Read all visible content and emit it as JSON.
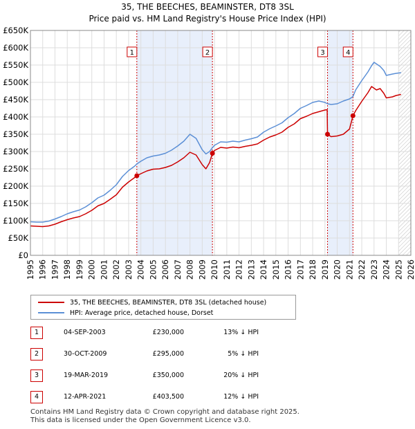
{
  "chart_data": {
    "type": "line",
    "title_line1": "35, THE BEECHES, BEAMINSTER, DT8 3SL",
    "title_line2": "Price paid vs. HM Land Registry's House Price Index (HPI)",
    "y_tick_labels": [
      "£0",
      "£50K",
      "£100K",
      "£150K",
      "£200K",
      "£250K",
      "£300K",
      "£350K",
      "£400K",
      "£450K",
      "£500K",
      "£550K",
      "£600K",
      "£650K"
    ],
    "y_ticks": [
      0,
      50000,
      100000,
      150000,
      200000,
      250000,
      300000,
      350000,
      400000,
      450000,
      500000,
      550000,
      600000,
      650000
    ],
    "x_ticks": [
      1995,
      1996,
      1997,
      1998,
      1999,
      2000,
      2001,
      2002,
      2003,
      2004,
      2005,
      2006,
      2007,
      2008,
      2009,
      2010,
      2011,
      2012,
      2013,
      2014,
      2015,
      2016,
      2017,
      2018,
      2019,
      2020,
      2021,
      2022,
      2023,
      2024,
      2025,
      2026
    ],
    "xlim": [
      1995,
      2026
    ],
    "ylim": [
      0,
      650000
    ],
    "grid": true,
    "hatched_after": 2025.0,
    "shaded_periods": [
      [
        2003.67,
        2009.83
      ],
      [
        2019.21,
        2021.28
      ]
    ],
    "series": [
      {
        "name": "35, THE BEECHES, BEAMINSTER, DT8 3SL (detached house)",
        "color": "#cc0000",
        "points": [
          [
            1995.0,
            85000
          ],
          [
            1995.5,
            84000
          ],
          [
            1996.0,
            83000
          ],
          [
            1996.5,
            85000
          ],
          [
            1997.0,
            90000
          ],
          [
            1997.5,
            97000
          ],
          [
            1998.0,
            103000
          ],
          [
            1998.5,
            108000
          ],
          [
            1999.0,
            112000
          ],
          [
            1999.5,
            120000
          ],
          [
            2000.0,
            130000
          ],
          [
            2000.5,
            143000
          ],
          [
            2001.0,
            150000
          ],
          [
            2001.5,
            162000
          ],
          [
            2002.0,
            175000
          ],
          [
            2002.5,
            197000
          ],
          [
            2003.0,
            212000
          ],
          [
            2003.5,
            225000
          ],
          [
            2003.67,
            230000
          ],
          [
            2004.0,
            236000
          ],
          [
            2004.5,
            244000
          ],
          [
            2005.0,
            249000
          ],
          [
            2005.5,
            250000
          ],
          [
            2006.0,
            254000
          ],
          [
            2006.5,
            260000
          ],
          [
            2007.0,
            270000
          ],
          [
            2007.5,
            282000
          ],
          [
            2008.0,
            298000
          ],
          [
            2008.5,
            290000
          ],
          [
            2009.0,
            262000
          ],
          [
            2009.3,
            250000
          ],
          [
            2009.6,
            268000
          ],
          [
            2009.83,
            295000
          ],
          [
            2010.0,
            303000
          ],
          [
            2010.5,
            312000
          ],
          [
            2011.0,
            310000
          ],
          [
            2011.5,
            313000
          ],
          [
            2012.0,
            311000
          ],
          [
            2012.5,
            315000
          ],
          [
            2013.0,
            318000
          ],
          [
            2013.5,
            322000
          ],
          [
            2014.0,
            333000
          ],
          [
            2014.5,
            342000
          ],
          [
            2015.0,
            348000
          ],
          [
            2015.5,
            356000
          ],
          [
            2016.0,
            370000
          ],
          [
            2016.5,
            380000
          ],
          [
            2017.0,
            395000
          ],
          [
            2017.5,
            402000
          ],
          [
            2018.0,
            410000
          ],
          [
            2018.5,
            415000
          ],
          [
            2019.0,
            420000
          ],
          [
            2019.18,
            421000
          ],
          [
            2019.21,
            350000
          ],
          [
            2019.5,
            343000
          ],
          [
            2020.0,
            345000
          ],
          [
            2020.5,
            350000
          ],
          [
            2021.0,
            365000
          ],
          [
            2021.28,
            403500
          ],
          [
            2021.5,
            418000
          ],
          [
            2022.0,
            445000
          ],
          [
            2022.5,
            470000
          ],
          [
            2022.8,
            488000
          ],
          [
            2023.2,
            478000
          ],
          [
            2023.5,
            482000
          ],
          [
            2023.8,
            468000
          ],
          [
            2024.0,
            455000
          ],
          [
            2024.5,
            458000
          ],
          [
            2024.8,
            462000
          ],
          [
            2025.2,
            465000
          ]
        ]
      },
      {
        "name": "HPI: Average price, detached house, Dorset",
        "color": "#5b8fd6",
        "points": [
          [
            1995.0,
            97000
          ],
          [
            1995.5,
            96000
          ],
          [
            1996.0,
            96000
          ],
          [
            1996.5,
            99000
          ],
          [
            1997.0,
            105000
          ],
          [
            1997.5,
            112000
          ],
          [
            1998.0,
            120000
          ],
          [
            1998.5,
            126000
          ],
          [
            1999.0,
            131000
          ],
          [
            1999.5,
            140000
          ],
          [
            2000.0,
            152000
          ],
          [
            2000.5,
            166000
          ],
          [
            2001.0,
            174000
          ],
          [
            2001.5,
            188000
          ],
          [
            2002.0,
            204000
          ],
          [
            2002.5,
            228000
          ],
          [
            2003.0,
            245000
          ],
          [
            2003.5,
            258000
          ],
          [
            2003.67,
            264000
          ],
          [
            2004.0,
            272000
          ],
          [
            2004.5,
            282000
          ],
          [
            2005.0,
            287000
          ],
          [
            2005.5,
            290000
          ],
          [
            2006.0,
            295000
          ],
          [
            2006.5,
            304000
          ],
          [
            2007.0,
            316000
          ],
          [
            2007.5,
            330000
          ],
          [
            2008.0,
            350000
          ],
          [
            2008.5,
            338000
          ],
          [
            2009.0,
            305000
          ],
          [
            2009.3,
            293000
          ],
          [
            2009.6,
            300000
          ],
          [
            2009.83,
            311000
          ],
          [
            2010.0,
            318000
          ],
          [
            2010.5,
            328000
          ],
          [
            2011.0,
            327000
          ],
          [
            2011.5,
            330000
          ],
          [
            2012.0,
            328000
          ],
          [
            2012.5,
            333000
          ],
          [
            2013.0,
            337000
          ],
          [
            2013.5,
            342000
          ],
          [
            2014.0,
            356000
          ],
          [
            2014.5,
            366000
          ],
          [
            2015.0,
            374000
          ],
          [
            2015.5,
            383000
          ],
          [
            2016.0,
            398000
          ],
          [
            2016.5,
            410000
          ],
          [
            2017.0,
            425000
          ],
          [
            2017.5,
            433000
          ],
          [
            2018.0,
            442000
          ],
          [
            2018.5,
            446000
          ],
          [
            2019.0,
            442000
          ],
          [
            2019.21,
            438000
          ],
          [
            2019.5,
            436000
          ],
          [
            2020.0,
            438000
          ],
          [
            2020.5,
            446000
          ],
          [
            2021.0,
            452000
          ],
          [
            2021.28,
            459000
          ],
          [
            2021.5,
            478000
          ],
          [
            2022.0,
            505000
          ],
          [
            2022.5,
            530000
          ],
          [
            2022.8,
            548000
          ],
          [
            2023.0,
            558000
          ],
          [
            2023.5,
            546000
          ],
          [
            2023.8,
            534000
          ],
          [
            2024.0,
            520000
          ],
          [
            2024.5,
            524000
          ],
          [
            2024.8,
            526000
          ],
          [
            2025.2,
            528000
          ]
        ]
      }
    ],
    "transactions": [
      {
        "num": "1",
        "x": 2003.67,
        "price": 230000,
        "date": "04-SEP-2003",
        "price_label": "£230,000",
        "hpi_label": "13% ↓ HPI"
      },
      {
        "num": "2",
        "x": 2009.83,
        "price": 295000,
        "date": "30-OCT-2009",
        "price_label": "£295,000",
        "hpi_label": "5% ↓ HPI"
      },
      {
        "num": "3",
        "x": 2019.21,
        "price": 350000,
        "date": "19-MAR-2019",
        "price_label": "£350,000",
        "hpi_label": "20% ↓ HPI"
      },
      {
        "num": "4",
        "x": 2021.28,
        "price": 403500,
        "date": "12-APR-2021",
        "price_label": "£403,500",
        "hpi_label": "12% ↓ HPI"
      }
    ]
  },
  "legend": {
    "property_label": "35, THE BEECHES, BEAMINSTER, DT8 3SL (detached house)",
    "hpi_label": "HPI: Average price, detached house, Dorset",
    "property_color": "#cc0000",
    "hpi_color": "#5b8fd6"
  },
  "footer": {
    "line1": "Contains HM Land Registry data © Crown copyright and database right 2025.",
    "line2": "This data is licensed under the Open Government Licence v3.0."
  }
}
